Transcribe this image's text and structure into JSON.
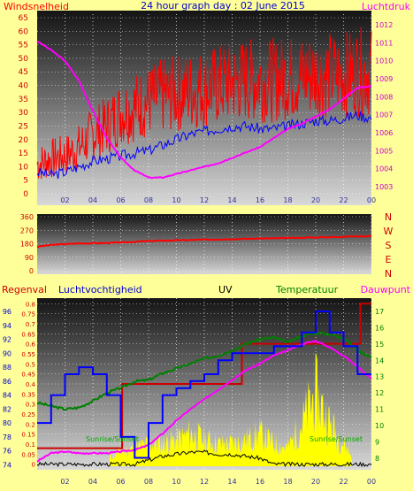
{
  "title": "24 hour graph day : 02 June 2015",
  "colors": {
    "background": "#ffff99",
    "wind": "#ff0000",
    "pressure": "#ff00ff",
    "humidity": "#0000ff",
    "temperature": "#008000",
    "dewpoint": "#ff00ff",
    "rain": "#cc0000",
    "uv": "#000000",
    "solar": "#ffff00"
  },
  "x_ticks": [
    "02",
    "04",
    "06",
    "08",
    "10",
    "12",
    "14",
    "16",
    "18",
    "20",
    "22",
    "00"
  ],
  "chart_data": [
    {
      "type": "line",
      "id": "wind-pressure",
      "left_label": "Windsnelheid",
      "right_label": "Luchtdruk",
      "y_left_ticks": [
        "0",
        "5",
        "10",
        "15",
        "20",
        "25",
        "30",
        "35",
        "40",
        "45",
        "50",
        "55",
        "60",
        "65"
      ],
      "y_right_ticks": [
        "1003",
        "1004",
        "1005",
        "1006",
        "1007",
        "1008",
        "1009",
        "1010",
        "1011",
        "1012"
      ],
      "ylim_left": [
        0,
        65
      ],
      "ylim_right": [
        1002.6,
        1012.4
      ],
      "x": [
        0,
        1,
        2,
        3,
        4,
        5,
        6,
        7,
        8,
        9,
        10,
        11,
        12,
        13,
        14,
        15,
        16,
        17,
        18,
        19,
        20,
        21,
        22,
        23,
        24
      ],
      "series": [
        {
          "key": "gust",
          "values": [
            11,
            13,
            14,
            17,
            22,
            25,
            30,
            32,
            34,
            36,
            37,
            38,
            39,
            40,
            41,
            42,
            42,
            42,
            43,
            43,
            44,
            44,
            44,
            45,
            45
          ]
        },
        {
          "key": "avg",
          "values": [
            8,
            7,
            8,
            10,
            12,
            13,
            14,
            15,
            16,
            18,
            20,
            22,
            23,
            24,
            25,
            25,
            24,
            24,
            25,
            26,
            27,
            27,
            28,
            29,
            28
          ]
        },
        {
          "key": "pressure",
          "values": [
            1011.1,
            1010.6,
            1010.0,
            1008.9,
            1007.2,
            1005.7,
            1004.6,
            1003.9,
            1003.5,
            1003.5,
            1003.7,
            1003.9,
            1004.1,
            1004.3,
            1004.6,
            1004.9,
            1005.2,
            1005.7,
            1006.2,
            1006.5,
            1006.9,
            1007.3,
            1007.9,
            1008.5,
            1008.6
          ]
        }
      ]
    },
    {
      "type": "line",
      "id": "wind-direction",
      "y_ticks": [
        "360",
        "270",
        "180",
        "90",
        "0"
      ],
      "direction_labels": [
        "N",
        "W",
        "S",
        "E",
        "N"
      ],
      "ylim": [
        0,
        360
      ],
      "x": [
        0,
        1,
        2,
        3,
        4,
        5,
        6,
        7,
        8,
        9,
        10,
        11,
        12,
        13,
        14,
        15,
        16,
        17,
        18,
        19,
        20,
        21,
        22,
        23,
        24
      ],
      "series": [
        {
          "key": "direction",
          "values": [
            160,
            172,
            178,
            182,
            183,
            185,
            188,
            193,
            198,
            201,
            203,
            205,
            207,
            209,
            211,
            213,
            215,
            216,
            218,
            220,
            222,
            224,
            227,
            229,
            231
          ]
        }
      ]
    },
    {
      "type": "line",
      "id": "rain-humidity-temp",
      "labels": {
        "rain": "Regenval",
        "humidity": "Luchtvochtigheid",
        "uv": "UV",
        "temperature": "Temperatuur",
        "dewpoint": "Dauwpunt"
      },
      "y_left_ticks": [
        "74",
        "76",
        "78",
        "80",
        "82",
        "84",
        "86",
        "88",
        "90",
        "92",
        "94",
        "96"
      ],
      "y_rain_ticks": [
        "0",
        "0.05",
        "0.1",
        "0.15",
        "0.2",
        "0.25",
        "0.3",
        "0.35",
        "0.4",
        "0.45",
        "0.5",
        "0.55",
        "0.6",
        "0.65",
        "0.7",
        "0.75",
        "0.8"
      ],
      "y_right_ticks": [
        "8",
        "9",
        "10",
        "11",
        "12",
        "13",
        "14",
        "15",
        "16",
        "17"
      ],
      "annotations": [
        "Sunrise/Sunset",
        "Sunrise/Sunset"
      ],
      "ylim_left": [
        73.8,
        97.4
      ],
      "ylim_rain": [
        -0.01,
        0.81
      ],
      "ylim_right": [
        7.5,
        17.6
      ],
      "x": [
        0,
        1,
        2,
        3,
        4,
        5,
        6,
        7,
        8,
        9,
        10,
        11,
        12,
        13,
        14,
        15,
        16,
        17,
        18,
        19,
        20,
        21,
        22,
        23,
        24
      ],
      "series": [
        {
          "key": "humidity",
          "values": [
            80,
            84,
            87,
            88,
            87,
            84,
            78,
            75,
            80,
            84,
            85,
            86,
            87,
            89,
            90,
            90,
            90,
            91,
            91,
            93,
            96,
            93,
            91,
            87,
            86
          ]
        },
        {
          "key": "temperature",
          "values": [
            11.4,
            11.2,
            11.0,
            11.1,
            11.5,
            12.0,
            12.3,
            12.7,
            12.8,
            13.2,
            13.5,
            13.8,
            14.1,
            14.3,
            14.6,
            15.0,
            15.3,
            15.4,
            15.1,
            15.5,
            15.7,
            15.6,
            15.4,
            14.6,
            14.2
          ]
        },
        {
          "key": "dewpoint",
          "values": [
            7.8,
            8.3,
            8.4,
            8.3,
            8.3,
            8.3,
            8.4,
            8.5,
            8.8,
            9.5,
            10.3,
            11.0,
            11.6,
            12.2,
            12.8,
            13.4,
            13.8,
            14.3,
            14.6,
            15.0,
            15.2,
            14.8,
            14.3,
            13.6,
            12.9
          ]
        },
        {
          "key": "rain",
          "x": [
            0,
            6.1,
            6.1,
            14.7,
            14.7,
            23.2,
            23.2,
            24
          ],
          "values": [
            0.08,
            0.08,
            0.4,
            0.4,
            0.6,
            0.6,
            0.8,
            0.8
          ]
        },
        {
          "key": "uv",
          "values": [
            0,
            0,
            0,
            0,
            0,
            0,
            0,
            0,
            0.02,
            0.04,
            0.05,
            0.06,
            0.06,
            0.05,
            0.05,
            0.04,
            0.03,
            0,
            0,
            0,
            0,
            0,
            0,
            0,
            0
          ]
        },
        {
          "key": "solar",
          "values": [
            0,
            0,
            0,
            0,
            0,
            0.03,
            0.06,
            0.08,
            0.1,
            0.1,
            0.12,
            0.15,
            0.12,
            0.1,
            0.1,
            0.12,
            0.15,
            0.1,
            0.08,
            0.2,
            0.35,
            0.2,
            0.1,
            0,
            0
          ]
        }
      ]
    }
  ]
}
